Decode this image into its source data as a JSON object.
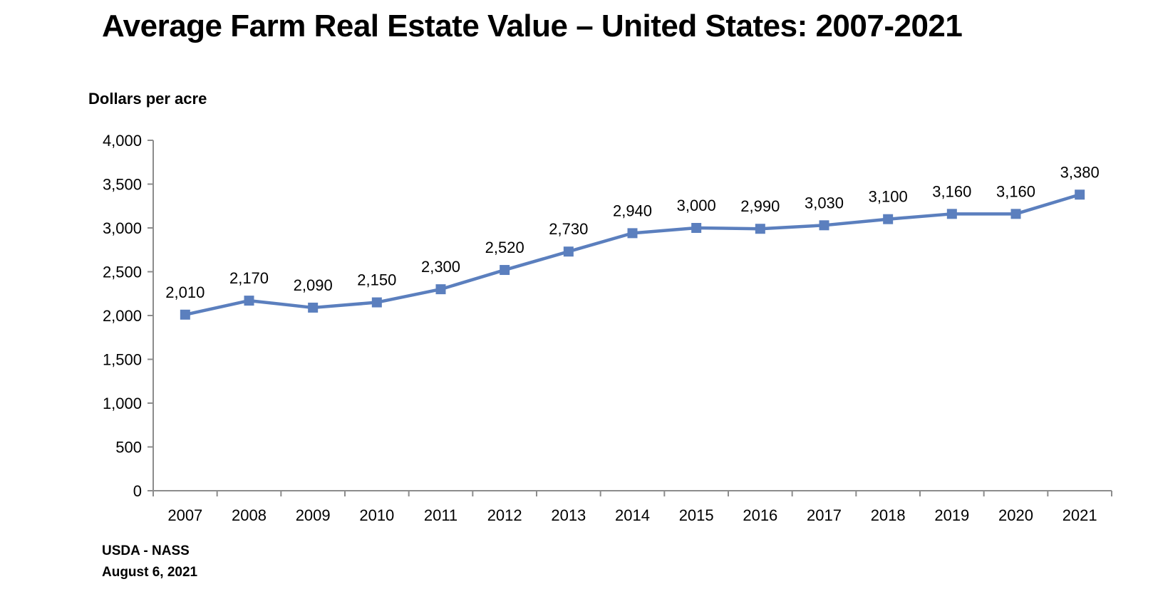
{
  "chart_data": {
    "type": "line",
    "title": "Average Farm Real Estate Value – United States: 2007-2021",
    "ylabel": "Dollars per acre",
    "xlabel": "",
    "x": [
      "2007",
      "2008",
      "2009",
      "2010",
      "2011",
      "2012",
      "2013",
      "2014",
      "2015",
      "2016",
      "2017",
      "2018",
      "2019",
      "2020",
      "2021"
    ],
    "series": [
      {
        "values": [
          2010,
          2170,
          2090,
          2150,
          2300,
          2520,
          2730,
          2940,
          3000,
          2990,
          3030,
          3100,
          3160,
          3160,
          3380
        ],
        "labels": [
          "2,010",
          "2,170",
          "2,090",
          "2,150",
          "2,300",
          "2,520",
          "2,730",
          "2,940",
          "3,000",
          "2,990",
          "3,030",
          "3,100",
          "3,160",
          "3,160",
          "3,380"
        ],
        "color": "#5B7FBE",
        "marker": "square"
      }
    ],
    "ylim": [
      0,
      4000
    ],
    "yticks": [
      0,
      500,
      1000,
      1500,
      2000,
      2500,
      3000,
      3500,
      4000
    ],
    "ytick_labels": [
      "0",
      "500",
      "1,000",
      "1,500",
      "2,000",
      "2,500",
      "3,000",
      "3,500",
      "4,000"
    ],
    "grid": false,
    "legend": "none"
  },
  "source": {
    "line1": "USDA - NASS",
    "line2": "August 6, 2021"
  }
}
